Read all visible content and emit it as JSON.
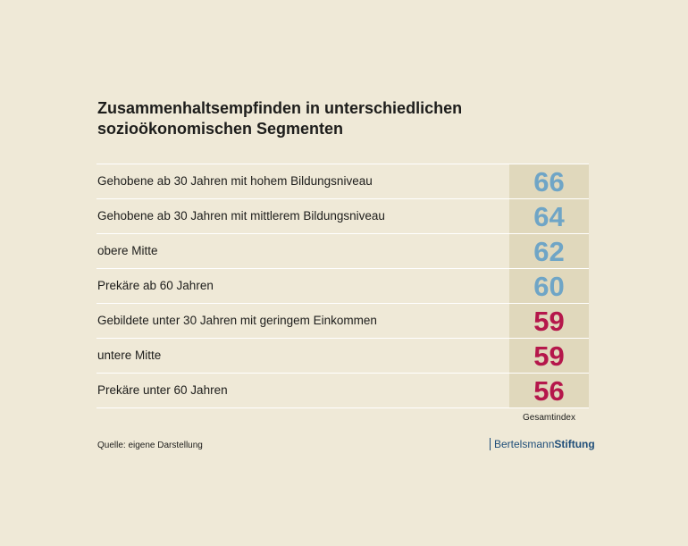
{
  "chart_data": {
    "type": "table",
    "title": "Zusammenhaltsempfinden in unterschiedlichen sozioökonomischen Segmenten",
    "column_label": "Gesamtindex",
    "rows": [
      {
        "label": "Gehobene ab 30 Jahren mit hohem Bildungsniveau",
        "value": 66,
        "color": "#6fa5c6"
      },
      {
        "label": "Gehobene ab 30 Jahren mit mittlerem Bildungsniveau",
        "value": 64,
        "color": "#6fa5c6"
      },
      {
        "label": "obere Mitte",
        "value": 62,
        "color": "#6fa5c6"
      },
      {
        "label": "Prekäre ab 60 Jahren",
        "value": 60,
        "color": "#6fa5c6"
      },
      {
        "label": "Gebildete unter 30 Jahren mit geringem Einkommen",
        "value": 59,
        "color": "#b5174b"
      },
      {
        "label": "untere Mitte",
        "value": 59,
        "color": "#b5174b"
      },
      {
        "label": "Prekäre unter 60 Jahren",
        "value": 56,
        "color": "#b5174b"
      }
    ]
  },
  "source": "Quelle: eigene Darstellung",
  "brand": {
    "part1": "Bertelsmann",
    "part2": "Stiftung",
    "color": "#1f4e79"
  }
}
